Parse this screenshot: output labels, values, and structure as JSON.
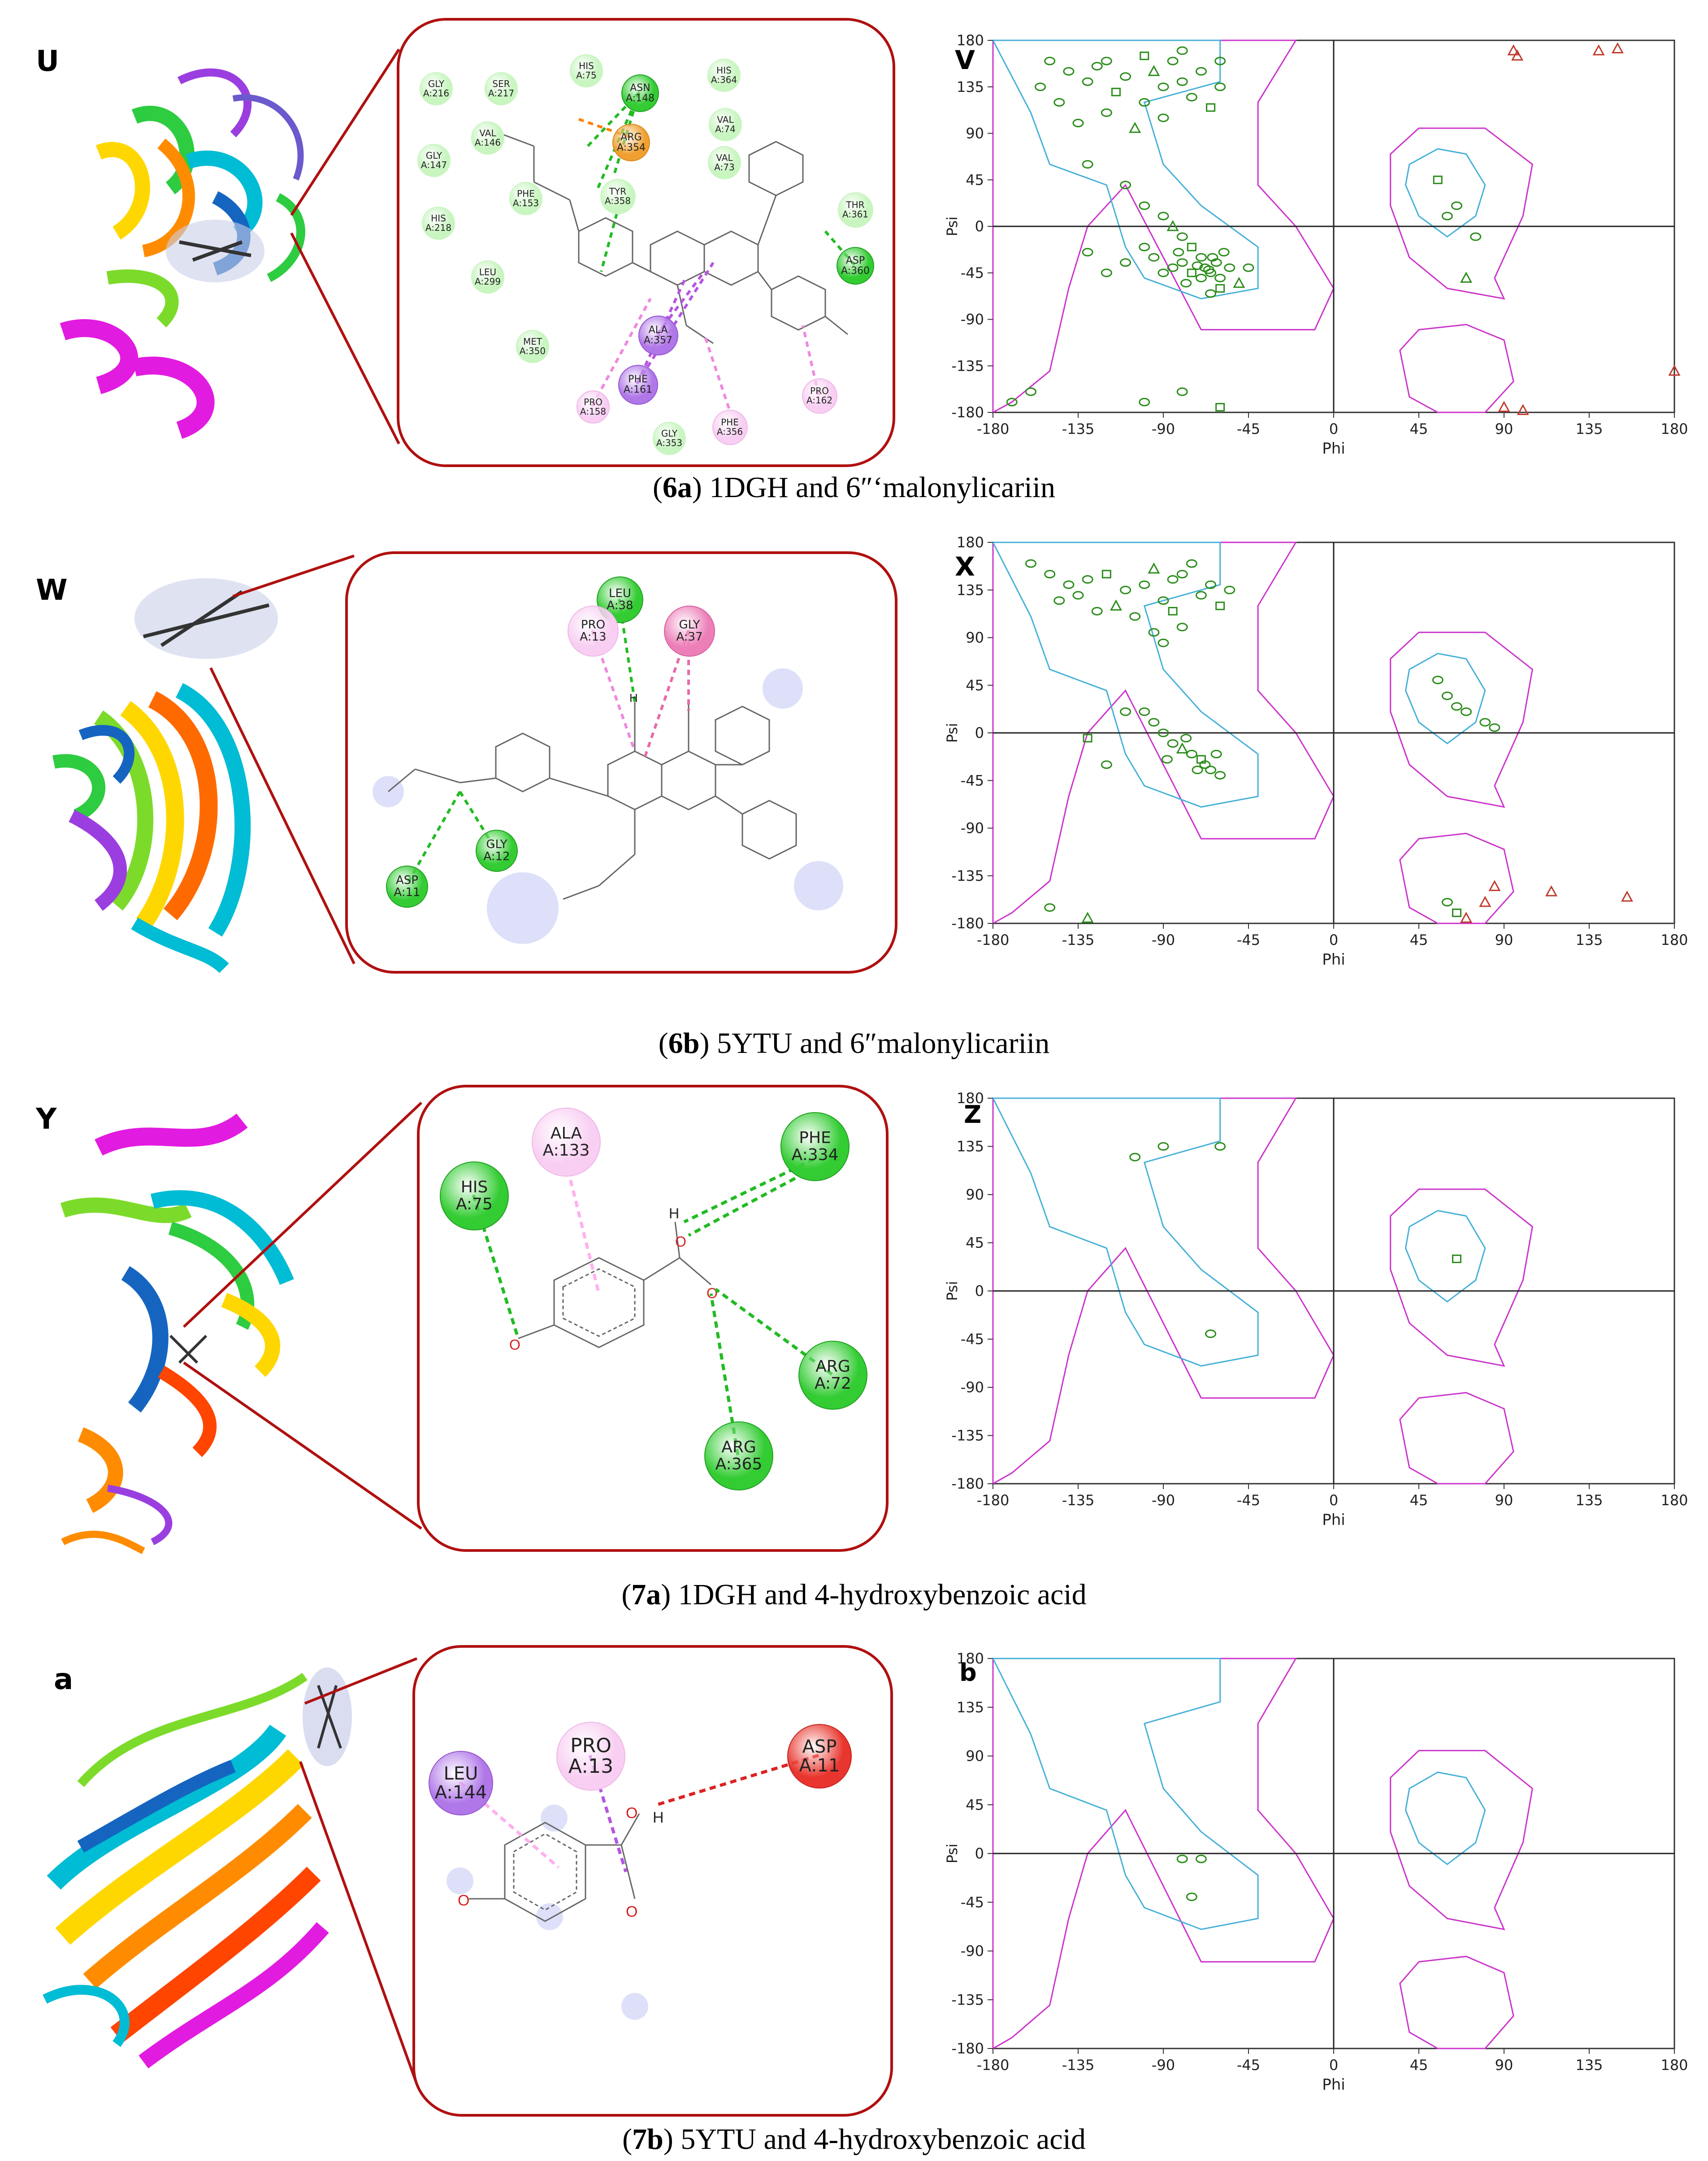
{
  "colors": {
    "connector": "#b01010",
    "hbond": "#22bb22",
    "pi_alkyl": "#ee88dd",
    "pi_pi": "#b555e0",
    "unfavorable": "#dd2222",
    "favored_contour": "#45b0d8",
    "allowed_contour": "#cc33cc",
    "residue_point": "#2a8c1a",
    "outlier_point": "#c0392b"
  },
  "rows": [
    {
      "protein_letter": "U",
      "plot_letter": "V",
      "caption_id": "6a",
      "caption_text": " 1DGH and 6″‘malonylicariin",
      "residues": [
        {
          "name": "GLY",
          "pos": "A:216",
          "type": "vdw"
        },
        {
          "name": "SER",
          "pos": "A:217",
          "type": "vdw"
        },
        {
          "name": "HIS",
          "pos": "A:75",
          "type": "vdw"
        },
        {
          "name": "HIS",
          "pos": "A:364",
          "type": "vdw"
        },
        {
          "name": "ASN",
          "pos": "A:148",
          "type": "hbond"
        },
        {
          "name": "VAL",
          "pos": "A:74",
          "type": "vdw"
        },
        {
          "name": "VAL",
          "pos": "A:146",
          "type": "vdw"
        },
        {
          "name": "GLY",
          "pos": "A:147",
          "type": "vdw"
        },
        {
          "name": "ARG",
          "pos": "A:354",
          "type": "salt"
        },
        {
          "name": "VAL",
          "pos": "A:73",
          "type": "vdw"
        },
        {
          "name": "PHE",
          "pos": "A:153",
          "type": "vdw"
        },
        {
          "name": "TYR",
          "pos": "A:358",
          "type": "vdw"
        },
        {
          "name": "THR",
          "pos": "A:361",
          "type": "vdw"
        },
        {
          "name": "HIS",
          "pos": "A:218",
          "type": "vdw"
        },
        {
          "name": "ASP",
          "pos": "A:360",
          "type": "hbond"
        },
        {
          "name": "LEU",
          "pos": "A:299",
          "type": "vdw"
        },
        {
          "name": "MET",
          "pos": "A:350",
          "type": "vdw"
        },
        {
          "name": "ALA",
          "pos": "A:357",
          "type": "pipi"
        },
        {
          "name": "PHE",
          "pos": "A:161",
          "type": "pipi"
        },
        {
          "name": "PRO",
          "pos": "A:158",
          "type": "alkyl"
        },
        {
          "name": "PRO",
          "pos": "A:162",
          "type": "alkyl"
        },
        {
          "name": "GLY",
          "pos": "A:353",
          "type": "vdw"
        },
        {
          "name": "PHE",
          "pos": "A:356",
          "type": "alkyl"
        }
      ],
      "ramachandran": {
        "xlabel": "Phi",
        "ylabel": "Psi",
        "xticks": [
          "-180",
          "-135",
          "-90",
          "-45",
          "0",
          "45",
          "90",
          "135",
          "180"
        ],
        "yticks": [
          "180",
          "135",
          "90",
          "45",
          "0",
          "-45",
          "-90",
          "-135",
          "-180"
        ]
      }
    },
    {
      "protein_letter": "W",
      "plot_letter": "X",
      "caption_id": "6b",
      "caption_text": " 5YTU and 6″malonylicariin",
      "residues": [
        {
          "name": "LEU",
          "pos": "A:38",
          "type": "hbond"
        },
        {
          "name": "PRO",
          "pos": "A:13",
          "type": "alkyl"
        },
        {
          "name": "GLY",
          "pos": "A:37",
          "type": "amide"
        },
        {
          "name": "GLY",
          "pos": "A:12",
          "type": "hbond"
        },
        {
          "name": "ASP",
          "pos": "A:11",
          "type": "hbond"
        }
      ],
      "ramachandran": {
        "xlabel": "Phi",
        "ylabel": "Psi",
        "xticks": [
          "-180",
          "-135",
          "-90",
          "-45",
          "0",
          "45",
          "90",
          "135",
          "180"
        ],
        "yticks": [
          "180",
          "135",
          "90",
          "45",
          "0",
          "-45",
          "-90",
          "-135",
          "-180"
        ]
      }
    },
    {
      "protein_letter": "Y",
      "plot_letter": "Z",
      "caption_id": "7a",
      "caption_text": " 1DGH and 4-hydroxybenzoic acid",
      "residues": [
        {
          "name": "ALA",
          "pos": "A:133",
          "type": "alkyl"
        },
        {
          "name": "PHE",
          "pos": "A:334",
          "type": "hbond"
        },
        {
          "name": "HIS",
          "pos": "A:75",
          "type": "hbond"
        },
        {
          "name": "ARG",
          "pos": "A:72",
          "type": "hbond"
        },
        {
          "name": "ARG",
          "pos": "A:365",
          "type": "hbond"
        }
      ],
      "ramachandran": {
        "xlabel": "Phi",
        "ylabel": "Psi",
        "xticks": [
          "-180",
          "-135",
          "-90",
          "-45",
          "0",
          "45",
          "90",
          "135",
          "180"
        ],
        "yticks": [
          "180",
          "135",
          "90",
          "45",
          "0",
          "-45",
          "-90",
          "-135",
          "-180"
        ]
      }
    },
    {
      "protein_letter": "a",
      "plot_letter": "b",
      "caption_id": "7b",
      "caption_text": " 5YTU and 4-hydroxybenzoic acid",
      "residues": [
        {
          "name": "LEU",
          "pos": "A:144",
          "type": "pipi"
        },
        {
          "name": "PRO",
          "pos": "A:13",
          "type": "alkyl"
        },
        {
          "name": "ASP",
          "pos": "A:11",
          "type": "unfavorable"
        }
      ],
      "ramachandran": {
        "xlabel": "Phi",
        "ylabel": "Psi",
        "xticks": [
          "-180",
          "-135",
          "-90",
          "-45",
          "0",
          "45",
          "90",
          "135",
          "180"
        ],
        "yticks": [
          "180",
          "135",
          "90",
          "45",
          "0",
          "-45",
          "-90",
          "-135",
          "-180"
        ]
      }
    }
  ],
  "atom_labels": {
    "oxygen": "O",
    "hydrogen": "H"
  }
}
